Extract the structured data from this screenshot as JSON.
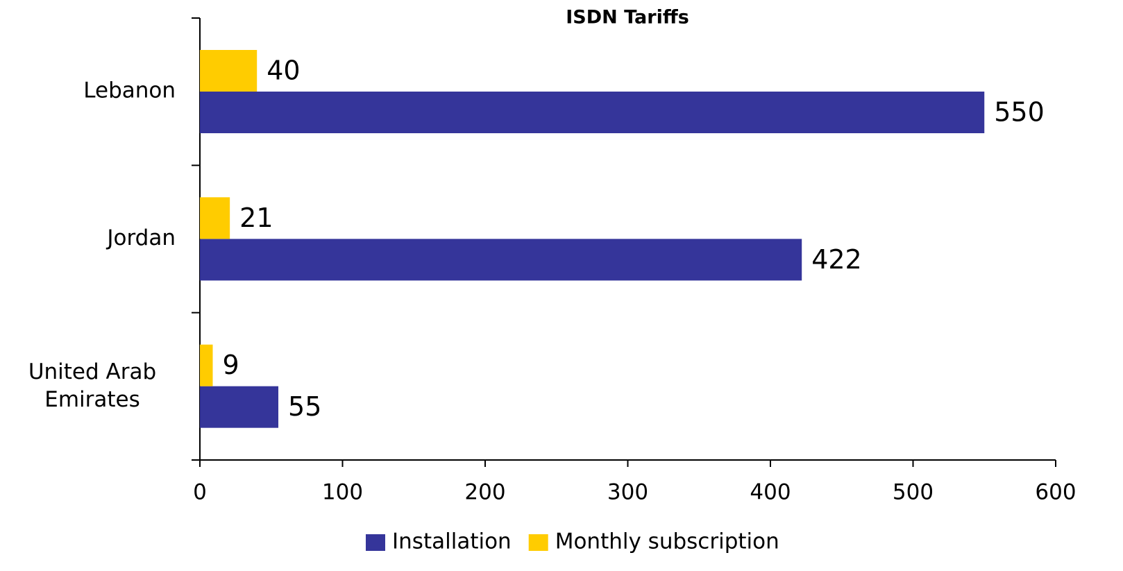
{
  "chart_data": {
    "type": "bar",
    "orientation": "horizontal",
    "title": "ISDN Tariffs",
    "categories": [
      "Lebanon",
      "Jordan",
      "United Arab Emirates"
    ],
    "series": [
      {
        "name": "Installation",
        "color": "#35359a",
        "values": [
          550,
          422,
          55
        ]
      },
      {
        "name": "Monthly subscription",
        "color": "#ffcc00",
        "values": [
          40,
          21,
          9
        ]
      }
    ],
    "xlim": [
      0,
      600
    ],
    "xticks": [
      0,
      100,
      200,
      300,
      400,
      500,
      600
    ],
    "grid": false,
    "legend": "bottom"
  }
}
